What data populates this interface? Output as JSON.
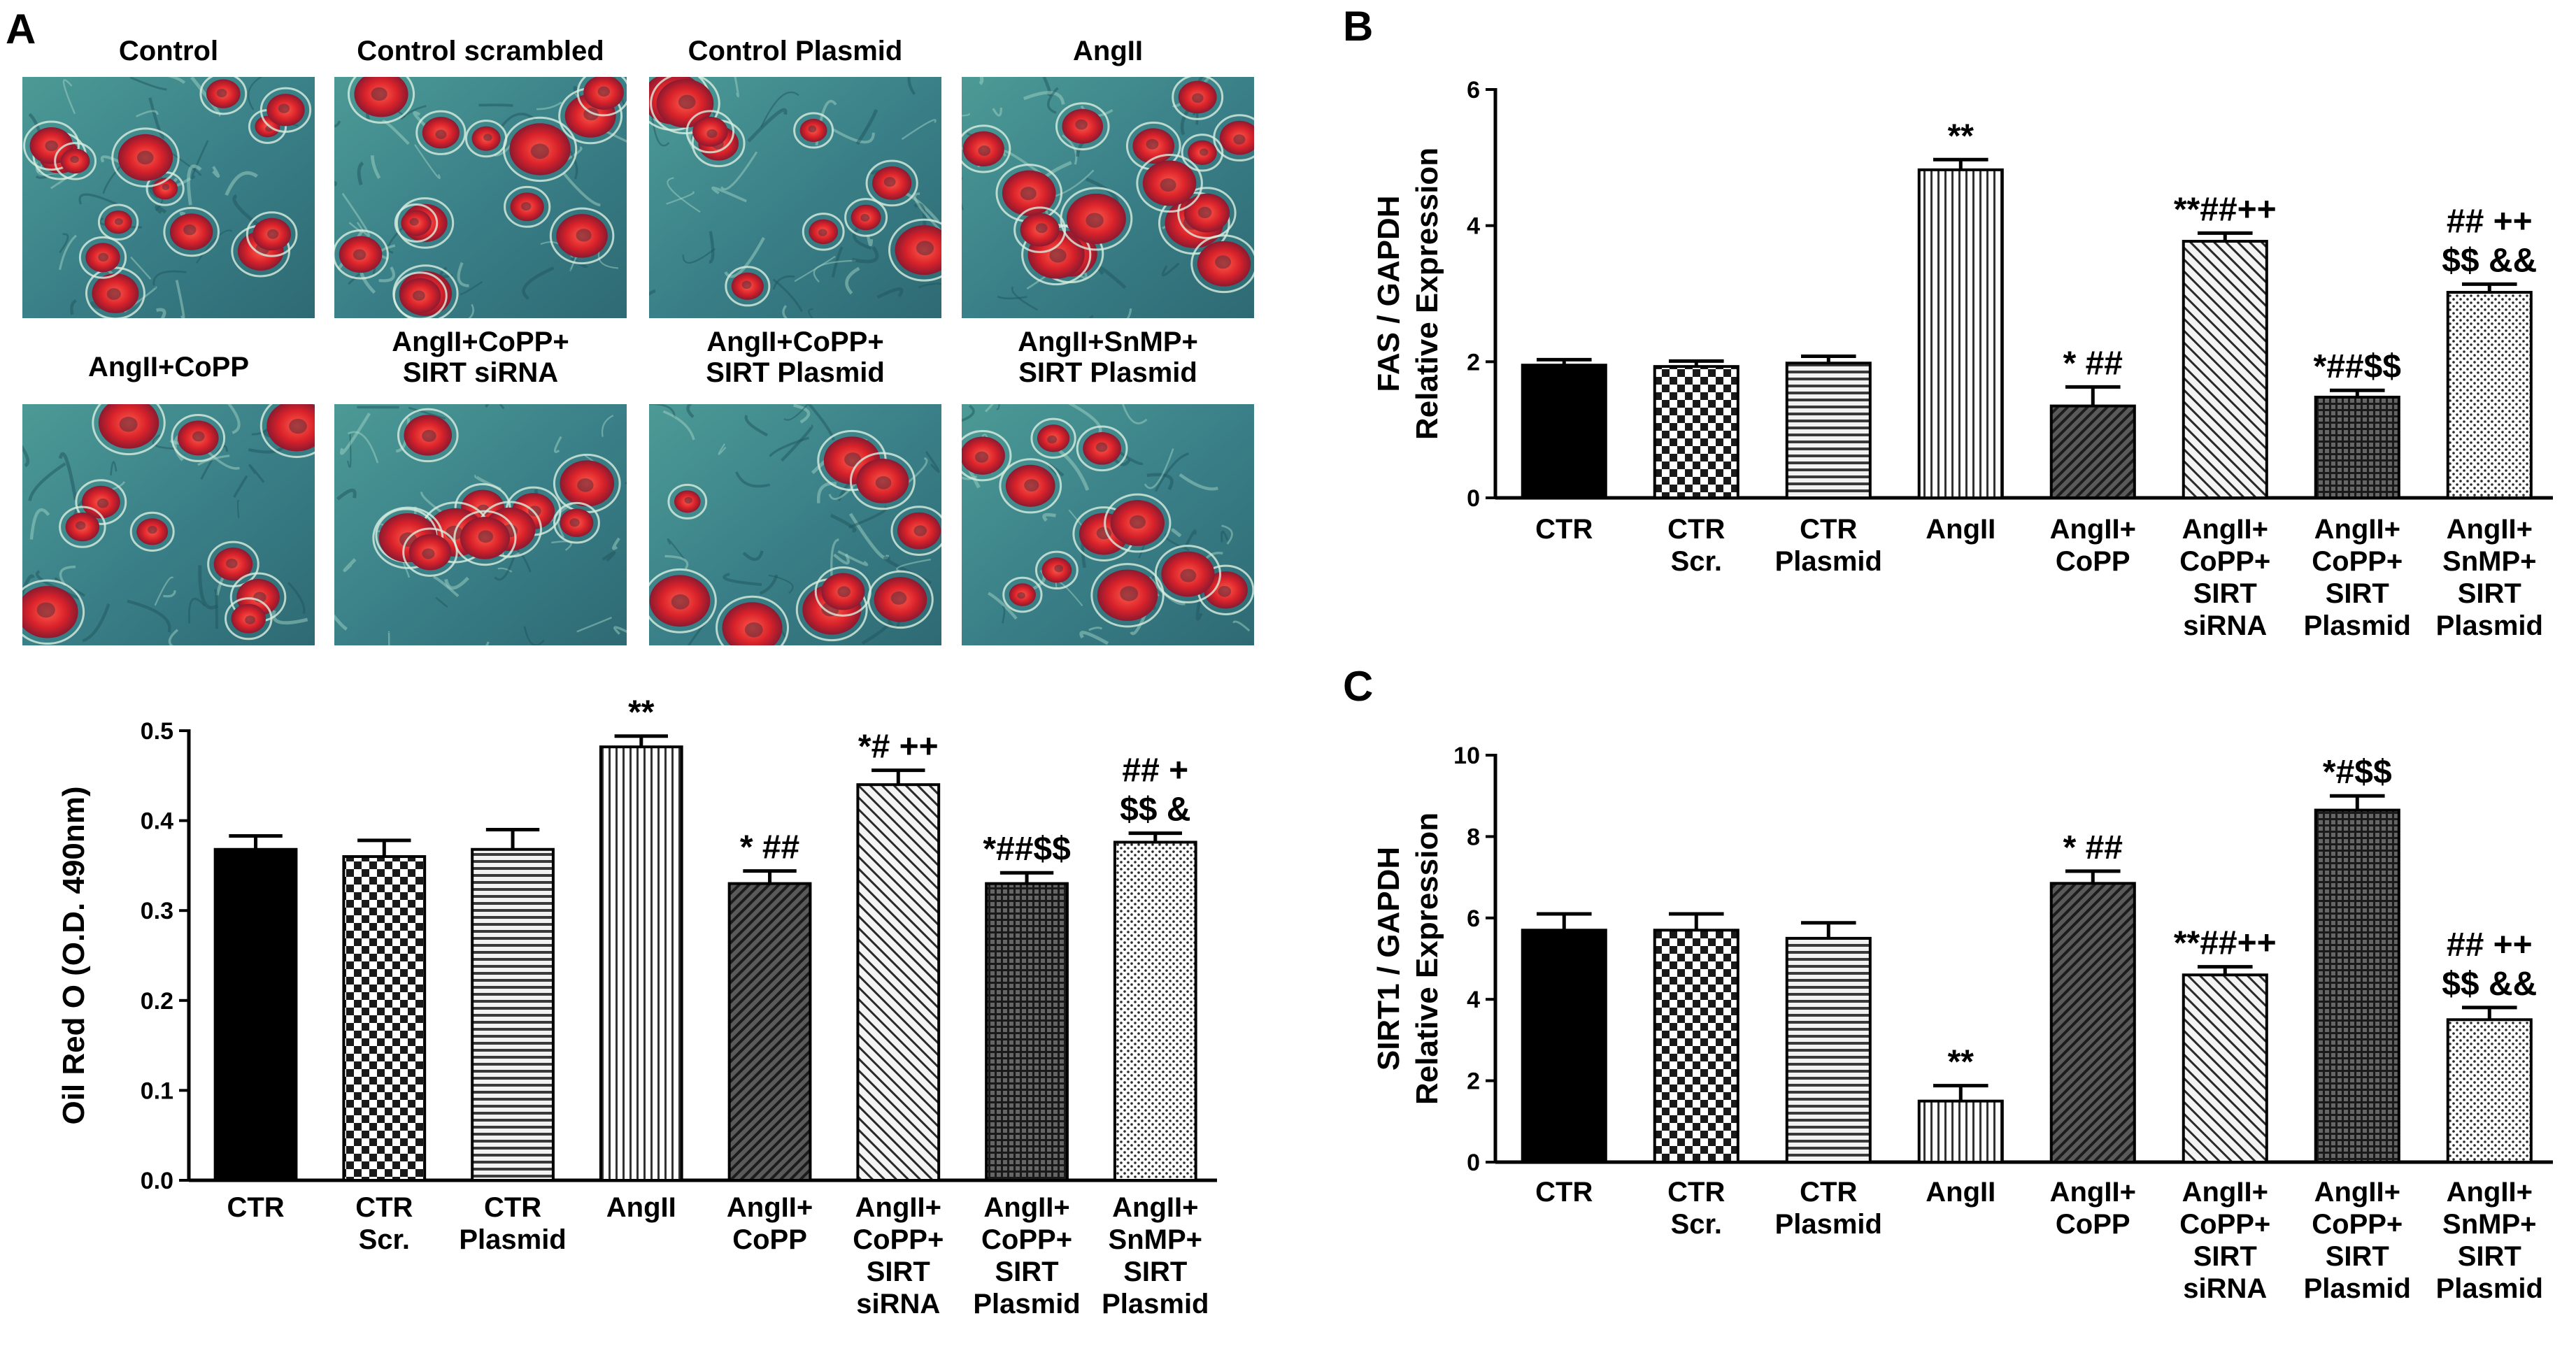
{
  "colors": {
    "micrograph_bg": "#3f8a8c",
    "micrograph_bg_dark": "#2b6b72",
    "lipid_red": "#d9222a",
    "cell_outline": "#cfe6d8"
  },
  "panel_a": {
    "letter": "A",
    "images": [
      {
        "title": "Control"
      },
      {
        "title": "Control scrambled"
      },
      {
        "title": "Control Plasmid"
      },
      {
        "title": "AngII"
      },
      {
        "title": "AngII+CoPP"
      },
      {
        "title": "AngII+CoPP+ SIRT siRNA"
      },
      {
        "title": "AngII+CoPP+ SIRT Plasmid"
      },
      {
        "title": "AngII+SnMP+ SIRT Plasmid"
      }
    ]
  },
  "chart_data": [
    {
      "id": "oilred",
      "letter": "",
      "type": "bar",
      "ylabel": "Oil Red O (O.D. 490nm)",
      "ylabel2": "",
      "ylim": [
        0,
        0.5
      ],
      "yticks": [
        "0.0",
        "0.1",
        "0.2",
        "0.3",
        "0.4",
        "0.5"
      ],
      "yticks_values": [
        0,
        0.1,
        0.2,
        0.3,
        0.4,
        0.5
      ],
      "categories": [
        [
          "CTR"
        ],
        [
          "CTR",
          "Scr."
        ],
        [
          "CTR",
          "Plasmid"
        ],
        [
          "AngII"
        ],
        [
          "AngII+",
          "CoPP"
        ],
        [
          "AngII+",
          "CoPP+",
          "SIRT",
          "siRNA"
        ],
        [
          "AngII+",
          "CoPP+",
          "SIRT",
          "Plasmid"
        ],
        [
          "AngII+",
          "SnMP+",
          "SIRT",
          "Plasmid"
        ]
      ],
      "values": [
        0.368,
        0.36,
        0.368,
        0.482,
        0.33,
        0.44,
        0.33,
        0.376
      ],
      "errors": [
        0.015,
        0.018,
        0.022,
        0.012,
        0.014,
        0.016,
        0.012,
        0.01
      ],
      "annotations": [
        [],
        [],
        [],
        [
          "**"
        ],
        [
          "* ##"
        ],
        [
          "*# ++"
        ],
        [
          "*##$$"
        ],
        [
          "## +",
          "$$ &"
        ]
      ]
    },
    {
      "id": "fas",
      "letter": "B",
      "type": "bar",
      "ylabel": "FAS / GAPDH",
      "ylabel2": "Relative Expression",
      "ylim": [
        0,
        6
      ],
      "yticks": [
        "0",
        "2",
        "4",
        "6"
      ],
      "yticks_values": [
        0,
        2,
        4,
        6
      ],
      "categories": [
        [
          "CTR"
        ],
        [
          "CTR",
          "Scr."
        ],
        [
          "CTR",
          "Plasmid"
        ],
        [
          "AngII"
        ],
        [
          "AngII+",
          "CoPP"
        ],
        [
          "AngII+",
          "CoPP+",
          "SIRT",
          "siRNA"
        ],
        [
          "AngII+",
          "CoPP+",
          "SIRT",
          "Plasmid"
        ],
        [
          "AngII+",
          "SnMP+",
          "SIRT",
          "Plasmid"
        ]
      ],
      "values": [
        1.95,
        1.93,
        1.98,
        4.82,
        1.35,
        3.77,
        1.48,
        3.02
      ],
      "errors": [
        0.08,
        0.08,
        0.1,
        0.15,
        0.28,
        0.12,
        0.1,
        0.12
      ],
      "annotations": [
        [],
        [],
        [],
        [
          "**"
        ],
        [
          "* ##"
        ],
        [
          "**##++"
        ],
        [
          "*##$$"
        ],
        [
          "## ++",
          "$$ &&"
        ]
      ]
    },
    {
      "id": "sirt1",
      "letter": "C",
      "type": "bar",
      "ylabel": "SIRT1 / GAPDH",
      "ylabel2": "Relative Expression",
      "ylim": [
        0,
        10
      ],
      "yticks": [
        "0",
        "2",
        "4",
        "6",
        "8",
        "10"
      ],
      "yticks_values": [
        0,
        2,
        4,
        6,
        8,
        10
      ],
      "categories": [
        [
          "CTR"
        ],
        [
          "CTR",
          "Scr."
        ],
        [
          "CTR",
          "Plasmid"
        ],
        [
          "AngII"
        ],
        [
          "AngII+",
          "CoPP"
        ],
        [
          "AngII+",
          "CoPP+",
          "SIRT",
          "siRNA"
        ],
        [
          "AngII+",
          "CoPP+",
          "SIRT",
          "Plasmid"
        ],
        [
          "AngII+",
          "SnMP+",
          "SIRT",
          "Plasmid"
        ]
      ],
      "values": [
        5.7,
        5.7,
        5.5,
        1.5,
        6.85,
        4.6,
        8.65,
        3.5
      ],
      "errors": [
        0.4,
        0.4,
        0.38,
        0.38,
        0.3,
        0.2,
        0.35,
        0.3
      ],
      "annotations": [
        [],
        [],
        [],
        [
          "**"
        ],
        [
          "* ##"
        ],
        [
          "**##++"
        ],
        [
          "*#$$"
        ],
        [
          "## ++",
          "$$ &&"
        ]
      ]
    }
  ]
}
